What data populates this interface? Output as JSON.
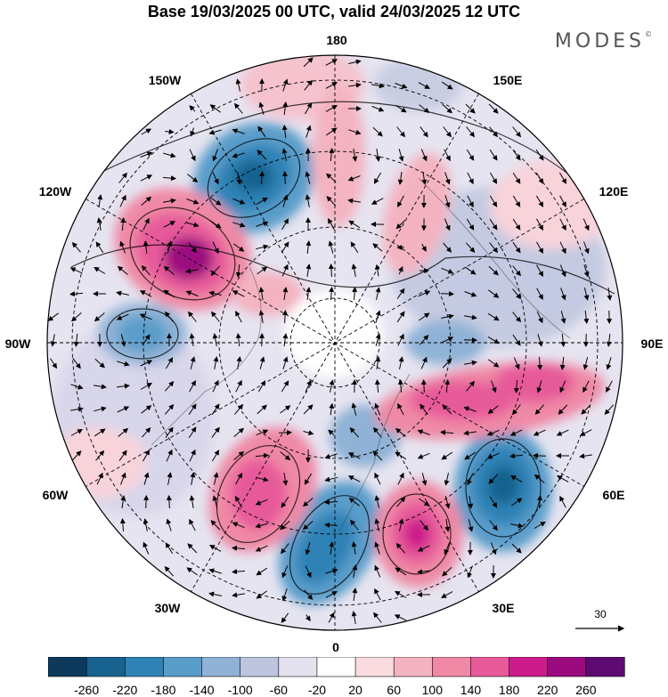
{
  "title": "Base 19/03/2025 00 UTC, valid 24/03/2025 12 UTC",
  "logo": {
    "text": "MODES",
    "mark": "©"
  },
  "lon_labels": {
    "l180": "180",
    "l150w": "150W",
    "l150e": "150E",
    "l120w": "120W",
    "l120e": "120E",
    "l90w": "90W",
    "l90e": "90E",
    "l60w": "60W",
    "l60e": "60E",
    "l30w": "30W",
    "l30e": "30E",
    "l0": "0"
  },
  "vector_key": {
    "label": "30"
  },
  "colorbar": {
    "colors": [
      "#0d3a5c",
      "#17628f",
      "#2f82b5",
      "#5a9dca",
      "#8fb2d6",
      "#bec6df",
      "#e4e2ef",
      "#ffffff",
      "#fadbe0",
      "#f4b3c1",
      "#ef89a6",
      "#e75a9a",
      "#cc1c8b",
      "#9c0a7f",
      "#5e0a73"
    ],
    "ticks": [
      "-260",
      "-220",
      "-180",
      "-140",
      "-100",
      "-60",
      "-20",
      "20",
      "60",
      "100",
      "140",
      "180",
      "220",
      "260"
    ]
  }
}
